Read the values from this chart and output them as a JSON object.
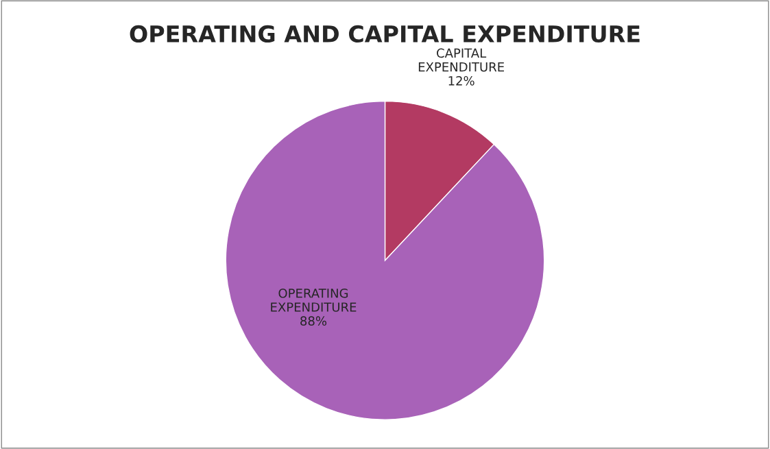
{
  "chart_data": {
    "type": "pie",
    "title": "OPERATING AND CAPITAL EXPENDITURE",
    "categories": [
      "CAPITAL EXPENDITURE",
      "OPERATING EXPENDITURE"
    ],
    "values": [
      12,
      88
    ],
    "colors": [
      "#b33a62",
      "#a862b8"
    ],
    "value_labels": [
      "12%",
      "88%"
    ],
    "legend": false
  }
}
